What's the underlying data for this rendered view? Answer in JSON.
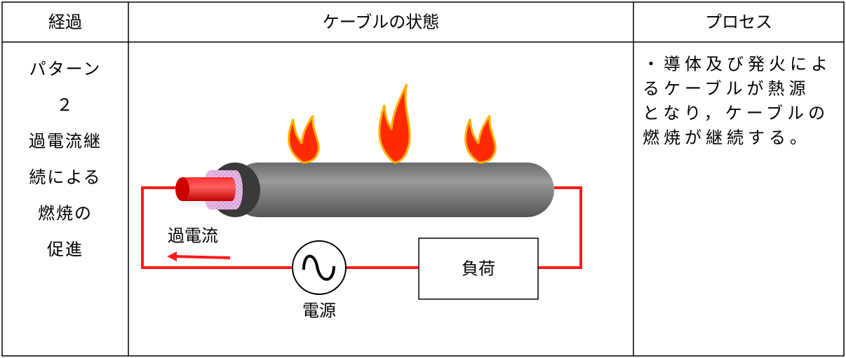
{
  "table": {
    "header": [
      "経過",
      "ケーブルの状態",
      "プロセス"
    ],
    "rows": [
      [
        [
          "パターン",
          "２",
          "過電流継",
          "続による",
          "燃焼の",
          "促進"
        ],
        {
          "labels": {
            "current": "過電流",
            "source": "電源",
            "load": "負荷"
          }
        },
        [
          "・導体及び発火によ",
          "るケーブルが熱源",
          "となり，ケーブルの",
          "燃焼が継続する。"
        ]
      ]
    ]
  }
}
